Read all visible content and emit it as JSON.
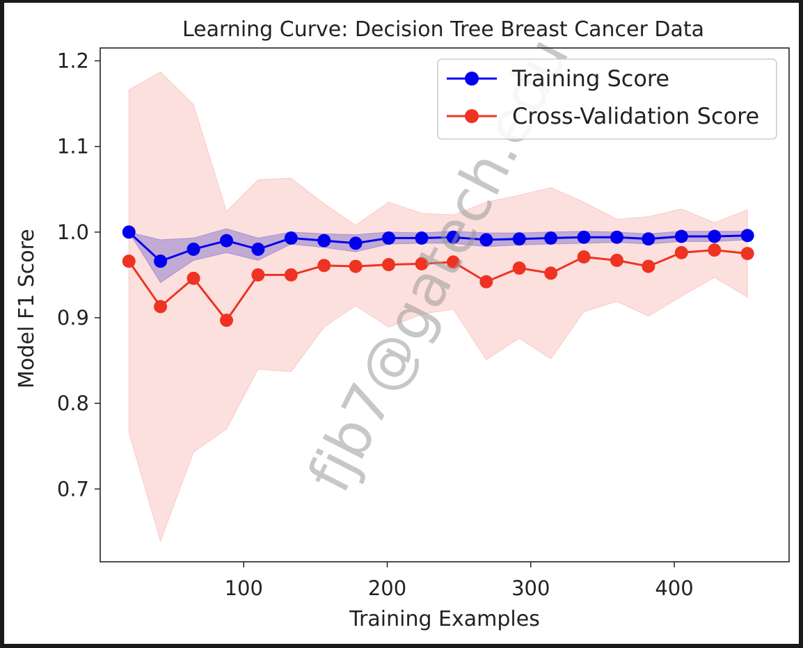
{
  "watermark": "fjb7@gatech.edu",
  "chart_data": {
    "type": "line",
    "title": "Learning Curve: Decision Tree Breast Cancer Data",
    "xlabel": "Training Examples",
    "ylabel": "Model F1 Score",
    "xlim": [
      0,
      480
    ],
    "ylim": [
      0.615,
      1.215
    ],
    "xticks": [
      100,
      200,
      300,
      400
    ],
    "yticks": [
      0.7,
      0.8,
      0.9,
      1.0,
      1.1,
      1.2
    ],
    "ytick_labels": [
      "0.7",
      "0.8",
      "0.9",
      "1.0",
      "1.1",
      "1.2"
    ],
    "legend_position": "top-right",
    "grid": false,
    "x": [
      20,
      42,
      65,
      88,
      110,
      133,
      156,
      178,
      201,
      224,
      246,
      269,
      292,
      314,
      337,
      360,
      382,
      405,
      428,
      451
    ],
    "series": [
      {
        "name": "Training Score",
        "color": "#0000ee",
        "band_color": "#7b68c8",
        "values": [
          1.0,
          0.966,
          0.98,
          0.99,
          0.98,
          0.993,
          0.99,
          0.987,
          0.993,
          0.993,
          0.994,
          0.991,
          0.992,
          0.993,
          0.994,
          0.994,
          0.992,
          0.995,
          0.995,
          0.996
        ],
        "upper": [
          1.0,
          0.991,
          0.993,
          1.004,
          0.993,
          1.0,
          0.998,
          0.997,
          1.0,
          0.999,
          1.001,
          0.999,
          0.999,
          1.0,
          1.001,
          1.0,
          0.998,
          1.001,
          1.001,
          1.001
        ],
        "lower": [
          1.0,
          0.941,
          0.967,
          0.976,
          0.967,
          0.986,
          0.982,
          0.977,
          0.986,
          0.987,
          0.987,
          0.983,
          0.985,
          0.986,
          0.987,
          0.988,
          0.986,
          0.989,
          0.989,
          0.991
        ]
      },
      {
        "name": "Cross-Validation Score",
        "color": "#ee3322",
        "band_color": "#f7a5a0",
        "values": [
          0.966,
          0.913,
          0.946,
          0.897,
          0.95,
          0.95,
          0.961,
          0.96,
          0.962,
          0.963,
          0.965,
          0.942,
          0.958,
          0.952,
          0.971,
          0.967,
          0.96,
          0.976,
          0.979,
          0.975
        ],
        "upper": [
          1.166,
          1.187,
          1.149,
          1.024,
          1.061,
          1.063,
          1.033,
          1.008,
          1.035,
          1.022,
          1.02,
          1.035,
          1.043,
          1.052,
          1.035,
          1.015,
          1.018,
          1.027,
          1.011,
          1.026
        ],
        "lower": [
          0.766,
          0.639,
          0.743,
          0.77,
          0.84,
          0.837,
          0.889,
          0.914,
          0.889,
          0.904,
          0.91,
          0.851,
          0.876,
          0.852,
          0.907,
          0.919,
          0.902,
          0.925,
          0.947,
          0.924
        ]
      }
    ]
  }
}
